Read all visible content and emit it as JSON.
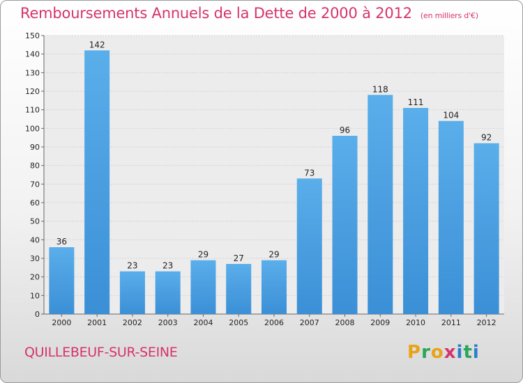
{
  "chart_data": {
    "type": "bar",
    "title": "Remboursements Annuels de la Dette de 2000 à 2012",
    "subtitle": "(en milliers d'€)",
    "categories": [
      "2000",
      "2001",
      "2002",
      "2003",
      "2004",
      "2005",
      "2006",
      "2007",
      "2008",
      "2009",
      "2010",
      "2011",
      "2012"
    ],
    "values": [
      36,
      142,
      23,
      23,
      29,
      27,
      29,
      73,
      96,
      118,
      111,
      104,
      92
    ],
    "ylim": [
      0,
      150
    ],
    "yticks": [
      0,
      10,
      20,
      30,
      40,
      50,
      60,
      70,
      80,
      90,
      100,
      110,
      120,
      130,
      140,
      150
    ],
    "grid": true,
    "bar_color": "#3b8fd6",
    "label_color": "#d6336c"
  },
  "footer": {
    "city": "QUILLEBEUF-SUR-SEINE",
    "logo": [
      "P",
      "r",
      "o",
      "x",
      "i",
      "t",
      "i"
    ],
    "logo_colors": [
      "#e8a317",
      "#2aa55a",
      "#e8a317",
      "#d6336c",
      "#2a7fc9",
      "#2aa55a",
      "#2a7fc9"
    ]
  }
}
